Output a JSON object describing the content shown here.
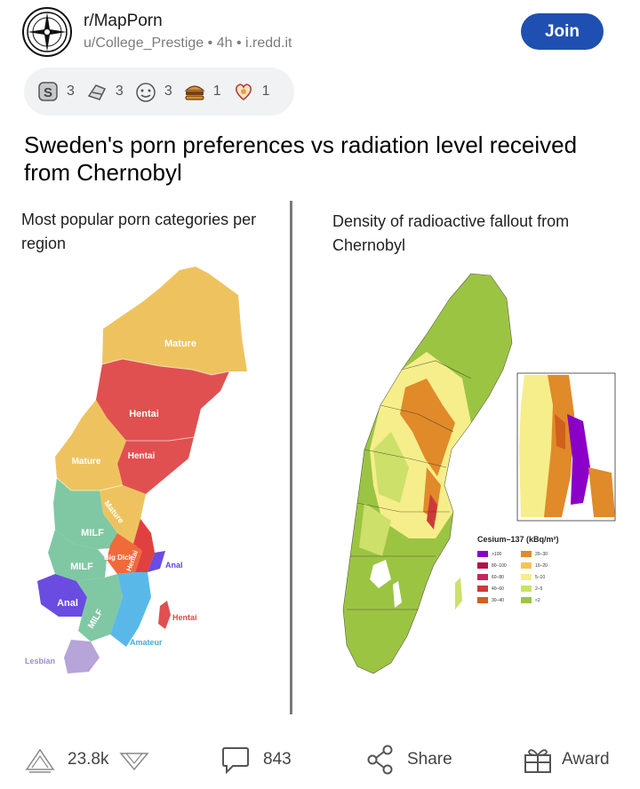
{
  "post": {
    "subreddit": "r/MapPorn",
    "author": "u/College_Prestige",
    "age": "4h",
    "domain": "i.redd.it",
    "meta_separator": "•",
    "join_label": "Join",
    "title": "Sweden's porn preferences vs radiation level received from Chernobyl"
  },
  "awards": [
    {
      "icon": "silver-award-icon",
      "count": "3"
    },
    {
      "icon": "helpful-award-icon",
      "count": "3"
    },
    {
      "icon": "wholesome-award-icon",
      "count": "3"
    },
    {
      "icon": "burger-award-icon",
      "count": "1"
    },
    {
      "icon": "heart-award-icon",
      "count": "1"
    }
  ],
  "image": {
    "left_heading": "Most popular porn categories per region",
    "right_heading": "Density of radioactive fallout from Chernobyl",
    "region_labels": {
      "mature_north": "Mature",
      "hentai_1": "Hentai",
      "hentai_2": "Hentai",
      "mature_west": "Mature",
      "mature_diag": "Mature",
      "milf_1": "MILF",
      "milf_2": "MILF",
      "big_dick": "Big Dick",
      "hentai_3": "Hentai",
      "anal_east": "Anal",
      "anal_west": "Anal",
      "milf_3": "MILF",
      "hentai_island": "Hentai",
      "amateur": "Amateur",
      "lesbian": "Lesbian"
    },
    "legend": {
      "title": "Cesium–137  (kBq/m²)",
      "items": [
        {
          "label": ">100",
          "color": "#8a00c8"
        },
        {
          "label": "80–100",
          "color": "#b0104a"
        },
        {
          "label": "60–80",
          "color": "#c02a60"
        },
        {
          "label": "40–60",
          "color": "#cc3a3a"
        },
        {
          "label": "30–40",
          "color": "#d0601c"
        },
        {
          "label": "20–30",
          "color": "#e08a2a"
        },
        {
          "label": "10–20",
          "color": "#f0c45a"
        },
        {
          "label": "5–10",
          "color": "#f6ee8a"
        },
        {
          "label": "2–5",
          "color": "#cce06a"
        },
        {
          "label": "<2",
          "color": "#9cc443"
        }
      ]
    }
  },
  "actions": {
    "upvotes": "23.8k",
    "comments": "843",
    "share_label": "Share",
    "award_label": "Award"
  },
  "colors": {
    "join": "#1f4fb0",
    "mature": "#eec35f",
    "hentai": "#e05050",
    "milf": "#7fc8a3",
    "anal": "#6a4ce0",
    "amateur": "#5ab8e8",
    "lesbian": "#b7a4d8",
    "fallout_base": "#9cc443"
  }
}
